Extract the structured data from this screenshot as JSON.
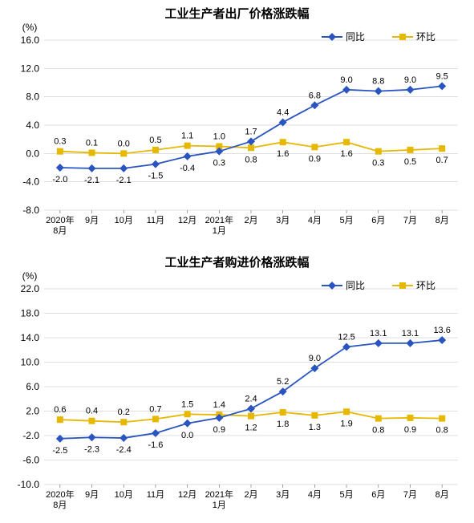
{
  "chart1": {
    "type": "line",
    "title": "工业生产者出厂价格涨跌幅",
    "y_unit": "(%)",
    "ylim": [
      -8.0,
      16.0
    ],
    "ytick_step": 4.0,
    "categories": [
      "2020年\n8月",
      "9月",
      "10月",
      "11月",
      "12月",
      "2021年\n1月",
      "2月",
      "3月",
      "4月",
      "5月",
      "6月",
      "7月",
      "8月"
    ],
    "series": [
      {
        "name": "同比",
        "color": "#2a55c1",
        "marker": "diamond",
        "values": [
          -2.0,
          -2.1,
          -2.1,
          -1.5,
          -0.4,
          0.3,
          1.7,
          4.4,
          6.8,
          9.0,
          8.8,
          9.0,
          9.5
        ],
        "label_pos": [
          "below",
          "below",
          "below",
          "below",
          "below",
          "below",
          "above",
          "above",
          "above",
          "above",
          "above",
          "above",
          "above"
        ]
      },
      {
        "name": "环比",
        "color": "#e6b800",
        "marker": "square",
        "values": [
          0.3,
          0.1,
          0.0,
          0.5,
          1.1,
          1.0,
          0.8,
          1.6,
          0.9,
          1.6,
          0.3,
          0.5,
          0.7
        ],
        "label_pos": [
          "above",
          "above",
          "above",
          "above",
          "above",
          "above",
          "below",
          "below",
          "below",
          "below",
          "below",
          "below",
          "below"
        ]
      }
    ],
    "legend": {
      "items": [
        "同比",
        "环比"
      ]
    },
    "colors": {
      "grid": "#bfbfbf",
      "bg": "#ffffff"
    },
    "fontsize_title": 15,
    "fontsize_axis": 12,
    "fontsize_data": 11
  },
  "chart2": {
    "type": "line",
    "title": "工业生产者购进价格涨跌幅",
    "y_unit": "(%)",
    "ylim": [
      -10.0,
      22.0
    ],
    "ytick_step": 4.0,
    "categories": [
      "2020年\n8月",
      "9月",
      "10月",
      "11月",
      "12月",
      "2021年\n1月",
      "2月",
      "3月",
      "4月",
      "5月",
      "6月",
      "7月",
      "8月"
    ],
    "series": [
      {
        "name": "同比",
        "color": "#2a55c1",
        "marker": "diamond",
        "values": [
          -2.5,
          -2.3,
          -2.4,
          -1.6,
          0.0,
          0.9,
          2.4,
          5.2,
          9.0,
          12.5,
          13.1,
          13.1,
          13.6
        ],
        "label_pos": [
          "below",
          "below",
          "below",
          "below",
          "below",
          "below",
          "above",
          "above",
          "above",
          "above",
          "above",
          "above",
          "above"
        ]
      },
      {
        "name": "环比",
        "color": "#e6b800",
        "marker": "square",
        "values": [
          0.6,
          0.4,
          0.2,
          0.7,
          1.5,
          1.4,
          1.2,
          1.8,
          1.3,
          1.9,
          0.8,
          0.9,
          0.8
        ],
        "label_pos": [
          "above",
          "above",
          "above",
          "above",
          "above",
          "above",
          "below",
          "below",
          "below",
          "below",
          "below",
          "below",
          "below"
        ]
      }
    ],
    "legend": {
      "items": [
        "同比",
        "环比"
      ]
    },
    "colors": {
      "grid": "#bfbfbf",
      "bg": "#ffffff"
    },
    "fontsize_title": 15,
    "fontsize_axis": 12,
    "fontsize_data": 11
  }
}
